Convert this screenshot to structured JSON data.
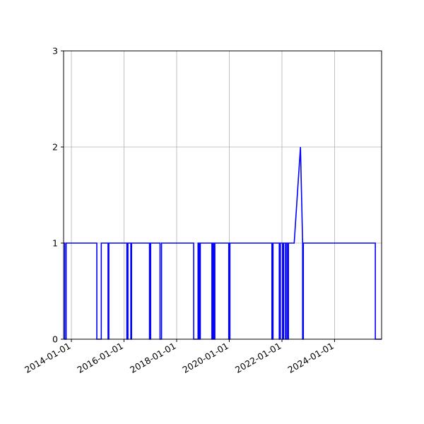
{
  "chart_data": {
    "type": "line",
    "title": "",
    "xlabel": "",
    "ylabel": "",
    "grid": true,
    "legend": "none",
    "x_axis_type": "date",
    "xlim": [
      "2013-09-15",
      "2025-10-15"
    ],
    "ylim": [
      0,
      3
    ],
    "xticks": [
      "2014-01-01",
      "2016-01-01",
      "2018-01-01",
      "2020-01-01",
      "2022-01-01",
      "2024-01-01"
    ],
    "yticks": [
      0,
      1,
      2,
      3
    ],
    "colors": {
      "line": "#0000ff",
      "grid": "#b0b0b0",
      "axis": "#000000"
    },
    "series": [
      {
        "x": [
          "2013-09-15",
          "2013-10-01",
          "2013-10-01",
          "2013-10-20",
          "2013-10-20",
          "2013-11-01",
          "2013-11-01",
          "2014-12-20",
          "2014-12-20",
          "2015-02-20",
          "2015-02-20",
          "2015-05-25",
          "2015-05-25",
          "2015-06-05",
          "2015-06-05",
          "2016-02-10",
          "2016-02-10",
          "2016-02-25",
          "2016-02-25",
          "2016-04-05",
          "2016-04-05",
          "2016-04-15",
          "2016-04-15",
          "2016-12-20",
          "2016-12-20",
          "2017-01-05",
          "2017-01-05",
          "2017-05-15",
          "2017-05-15",
          "2017-06-05",
          "2017-06-05",
          "2018-08-25",
          "2018-08-25",
          "2018-10-25",
          "2018-10-25",
          "2018-11-10",
          "2018-11-10",
          "2018-11-25",
          "2018-11-25",
          "2019-05-05",
          "2019-05-05",
          "2019-05-20",
          "2019-05-20",
          "2019-06-05",
          "2019-06-05",
          "2019-06-15",
          "2019-06-15",
          "2019-12-25",
          "2019-12-25",
          "2020-01-10",
          "2020-01-10",
          "2021-08-15",
          "2021-08-15",
          "2021-08-30",
          "2021-08-30",
          "2021-11-25",
          "2021-11-25",
          "2021-12-10",
          "2021-12-10",
          "2022-01-10",
          "2022-01-10",
          "2022-01-25",
          "2022-01-25",
          "2022-02-20",
          "2022-02-20",
          "2022-03-01",
          "2022-03-01",
          "2022-03-20",
          "2022-03-20",
          "2022-04-01",
          "2022-04-01",
          "2022-06-20",
          "2022-09-15",
          "2022-09-15",
          "2022-10-15",
          "2022-10-15",
          "2022-10-25",
          "2022-10-25",
          "2025-07-20",
          "2025-07-20",
          "2025-10-15"
        ],
        "y": [
          1,
          1,
          0,
          0,
          1,
          1,
          1,
          1,
          0,
          0,
          1,
          1,
          0,
          0,
          1,
          1,
          0,
          0,
          1,
          1,
          0,
          0,
          1,
          1,
          0,
          0,
          1,
          1,
          0,
          0,
          1,
          1,
          0,
          0,
          1,
          1,
          0,
          0,
          1,
          1,
          0,
          0,
          1,
          1,
          0,
          0,
          1,
          1,
          0,
          0,
          1,
          1,
          0,
          0,
          1,
          1,
          0,
          0,
          1,
          1,
          0,
          0,
          1,
          1,
          0,
          0,
          1,
          1,
          0,
          0,
          1,
          1,
          2,
          2,
          1,
          0,
          0,
          1,
          1,
          0,
          0
        ]
      }
    ]
  }
}
